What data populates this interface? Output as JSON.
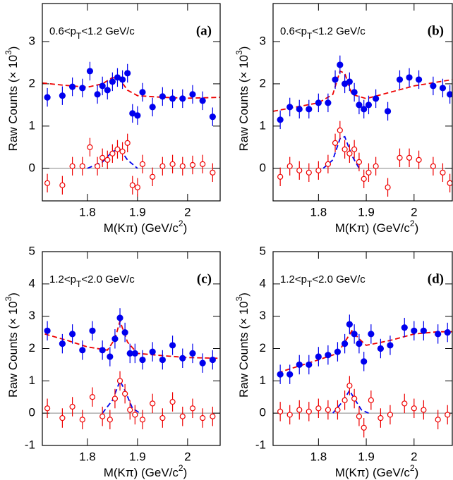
{
  "chart_data": [
    {
      "type": "scatter",
      "panel_label": "(a)",
      "annotation": [
        "0.6<p",
        "T",
        "<1.2 GeV/c"
      ],
      "ylabel": [
        "Raw Counts (",
        "×",
        " 10",
        "3",
        ")"
      ],
      "xlabel": [
        "M(K",
        "π",
        ") (GeV/c",
        "2",
        ")"
      ],
      "xlim": [
        1.71,
        2.065
      ],
      "ylim": [
        -0.77,
        3.9
      ],
      "xticks": [
        1.8,
        1.9,
        2
      ],
      "yticks": [
        0,
        1,
        2,
        3
      ],
      "zero_line": true,
      "x": [
        1.72,
        1.75,
        1.77,
        1.79,
        1.805,
        1.82,
        1.83,
        1.84,
        1.85,
        1.86,
        1.87,
        1.88,
        1.89,
        1.9,
        1.91,
        1.93,
        1.95,
        1.97,
        1.99,
        2.01,
        2.03,
        2.05
      ],
      "series": [
        {
          "color": "#0000ee",
          "marker": "filled",
          "values": [
            1.68,
            1.72,
            1.93,
            1.9,
            2.3,
            1.75,
            1.95,
            1.85,
            2.05,
            2.15,
            2.1,
            2.25,
            1.3,
            1.25,
            1.8,
            1.45,
            1.7,
            1.65,
            1.65,
            1.75,
            1.6,
            1.22
          ],
          "errors": [
            0.22,
            0.22,
            0.22,
            0.22,
            0.22,
            0.22,
            0.22,
            0.22,
            0.22,
            0.22,
            0.22,
            0.22,
            0.22,
            0.22,
            0.22,
            0.22,
            0.22,
            0.22,
            0.22,
            0.22,
            0.22,
            0.22
          ]
        },
        {
          "color": "#ee0000",
          "marker": "open",
          "values": [
            -0.35,
            -0.4,
            0.05,
            0.05,
            0.5,
            0.05,
            0.25,
            0.2,
            0.35,
            0.45,
            0.4,
            0.6,
            -0.4,
            -0.45,
            0.1,
            -0.2,
            0.05,
            0.1,
            0.05,
            0.08,
            0.1,
            -0.1
          ],
          "errors": [
            0.22,
            0.22,
            0.22,
            0.22,
            0.22,
            0.22,
            0.22,
            0.22,
            0.22,
            0.22,
            0.22,
            0.22,
            0.22,
            0.22,
            0.22,
            0.22,
            0.22,
            0.22,
            0.22,
            0.22,
            0.22,
            0.22
          ]
        }
      ],
      "fits": [
        {
          "color": "#ee0000",
          "x": [
            1.71,
            1.75,
            1.8,
            1.83,
            1.85,
            1.865,
            1.88,
            1.9,
            1.95,
            2.0,
            2.065
          ],
          "values": [
            2.02,
            1.97,
            1.92,
            2.0,
            2.15,
            2.1,
            1.85,
            1.72,
            1.68,
            1.66,
            1.68
          ]
        },
        {
          "color": "#0000ee",
          "x": [
            1.8,
            1.83,
            1.85,
            1.865,
            1.88,
            1.9
          ],
          "values": [
            0,
            0.15,
            0.4,
            0.45,
            0.2,
            0
          ]
        }
      ]
    },
    {
      "type": "scatter",
      "panel_label": "(b)",
      "annotation": [
        "0.6<p",
        "T",
        "<1.2 GeV/c"
      ],
      "ylabel": [
        "Raw Counts (",
        "×",
        " 10",
        "3",
        ")"
      ],
      "xlabel": [
        "M(K",
        "π",
        ") (GeV/c",
        "2",
        ")"
      ],
      "xlim": [
        1.705,
        2.08
      ],
      "ylim": [
        -0.77,
        3.9
      ],
      "xticks": [
        1.8,
        1.9,
        2
      ],
      "yticks": [
        0,
        1,
        2,
        3
      ],
      "zero_line": true,
      "x": [
        1.72,
        1.74,
        1.76,
        1.78,
        1.8,
        1.82,
        1.835,
        1.845,
        1.855,
        1.865,
        1.875,
        1.885,
        1.895,
        1.905,
        1.92,
        1.945,
        1.97,
        1.99,
        2.01,
        2.04,
        2.06,
        2.075
      ],
      "series": [
        {
          "color": "#0000ee",
          "marker": "filled",
          "values": [
            1.15,
            1.45,
            1.4,
            1.4,
            1.55,
            1.55,
            2.1,
            2.45,
            2.0,
            2.05,
            1.8,
            1.5,
            1.4,
            1.5,
            1.65,
            1.35,
            2.1,
            2.15,
            2.1,
            1.95,
            1.9,
            1.75
          ],
          "errors": [
            0.22,
            0.22,
            0.22,
            0.22,
            0.22,
            0.22,
            0.22,
            0.22,
            0.22,
            0.22,
            0.22,
            0.22,
            0.22,
            0.22,
            0.22,
            0.22,
            0.22,
            0.22,
            0.22,
            0.22,
            0.22,
            0.22
          ]
        },
        {
          "color": "#ee0000",
          "marker": "open",
          "values": [
            -0.2,
            0.05,
            -0.05,
            -0.1,
            -0.05,
            0.1,
            0.6,
            0.9,
            0.45,
            0.35,
            0.45,
            0.15,
            -0.25,
            -0.1,
            0.05,
            -0.45,
            0.25,
            0.25,
            0.2,
            0.05,
            -0.1,
            -0.35
          ],
          "errors": [
            0.22,
            0.22,
            0.22,
            0.22,
            0.22,
            0.22,
            0.22,
            0.22,
            0.22,
            0.22,
            0.22,
            0.22,
            0.22,
            0.22,
            0.22,
            0.22,
            0.22,
            0.22,
            0.22,
            0.22,
            0.22,
            0.22
          ]
        }
      ],
      "fits": [
        {
          "color": "#ee0000",
          "x": [
            1.705,
            1.8,
            1.83,
            1.845,
            1.855,
            1.87,
            1.9,
            2.0,
            2.08
          ],
          "values": [
            1.35,
            1.55,
            1.75,
            2.3,
            2.25,
            1.75,
            1.65,
            1.95,
            2.1
          ]
        },
        {
          "color": "#0000ee",
          "x": [
            1.81,
            1.83,
            1.845,
            1.855,
            1.87,
            1.885
          ],
          "values": [
            0,
            0.2,
            0.7,
            0.75,
            0.3,
            0
          ]
        }
      ]
    },
    {
      "type": "scatter",
      "panel_label": "(c)",
      "annotation": [
        "1.2<p",
        "T",
        "<2.0 GeV/c"
      ],
      "ylabel": [
        "Raw Counts (",
        "×",
        " 10",
        "3",
        ")"
      ],
      "xlabel": [
        "M(K",
        "π",
        ") (GeV/c",
        "2",
        ")"
      ],
      "xlim": [
        1.71,
        2.065
      ],
      "ylim": [
        -1,
        5
      ],
      "xticks": [
        1.8,
        1.9,
        2
      ],
      "yticks": [
        -1,
        0,
        1,
        2,
        3,
        4,
        5
      ],
      "zero_line": true,
      "x": [
        1.72,
        1.75,
        1.77,
        1.79,
        1.81,
        1.83,
        1.845,
        1.855,
        1.865,
        1.875,
        1.885,
        1.895,
        1.91,
        1.93,
        1.95,
        1.97,
        1.99,
        2.01,
        2.03,
        2.05
      ],
      "series": [
        {
          "color": "#0000ee",
          "marker": "filled",
          "values": [
            2.55,
            2.15,
            2.45,
            1.95,
            2.55,
            1.95,
            1.75,
            2.3,
            2.95,
            2.5,
            1.85,
            1.85,
            1.65,
            1.9,
            1.65,
            2.1,
            1.7,
            1.85,
            1.55,
            1.65
          ],
          "errors": [
            0.3,
            0.3,
            0.3,
            0.3,
            0.3,
            0.3,
            0.3,
            0.3,
            0.3,
            0.3,
            0.3,
            0.3,
            0.3,
            0.3,
            0.3,
            0.3,
            0.3,
            0.3,
            0.3,
            0.3
          ]
        },
        {
          "color": "#ee0000",
          "marker": "open",
          "values": [
            0.15,
            -0.15,
            0.2,
            -0.2,
            0.5,
            -0.1,
            -0.2,
            0.45,
            1.0,
            0.6,
            0.1,
            -0.05,
            -0.2,
            0.3,
            -0.15,
            0.35,
            -0.1,
            0.15,
            -0.15,
            -0.1
          ],
          "errors": [
            0.3,
            0.3,
            0.3,
            0.3,
            0.3,
            0.3,
            0.3,
            0.3,
            0.3,
            0.3,
            0.3,
            0.3,
            0.3,
            0.3,
            0.3,
            0.3,
            0.3,
            0.3,
            0.3,
            0.3
          ]
        }
      ],
      "fits": [
        {
          "color": "#ee0000",
          "x": [
            1.715,
            1.76,
            1.8,
            1.84,
            1.855,
            1.865,
            1.88,
            1.9,
            1.95,
            2.0,
            2.06
          ],
          "values": [
            2.45,
            2.25,
            2.05,
            1.95,
            2.3,
            2.85,
            2.2,
            1.85,
            1.78,
            1.72,
            1.7
          ]
        },
        {
          "color": "#0000ee",
          "x": [
            1.83,
            1.85,
            1.865,
            1.875,
            1.89,
            1.905
          ],
          "values": [
            0,
            0.4,
            1.0,
            0.7,
            0.15,
            0
          ]
        }
      ]
    },
    {
      "type": "scatter",
      "panel_label": "(d)",
      "annotation": [
        "1.2<p",
        "T",
        "<2.0 GeV/c"
      ],
      "ylabel": [
        "Raw Counts (",
        "×",
        " 10",
        "3",
        ")"
      ],
      "xlabel": [
        "M(K",
        "π",
        ") (GeV/c",
        "2",
        ")"
      ],
      "xlim": [
        1.705,
        2.08
      ],
      "ylim": [
        -1,
        5
      ],
      "xticks": [
        1.8,
        1.9,
        2
      ],
      "yticks": [
        -1,
        0,
        1,
        2,
        3,
        4,
        5
      ],
      "zero_line": true,
      "x": [
        1.72,
        1.74,
        1.76,
        1.78,
        1.8,
        1.82,
        1.84,
        1.855,
        1.865,
        1.875,
        1.885,
        1.895,
        1.91,
        1.93,
        1.95,
        1.98,
        2.0,
        2.02,
        2.05,
        2.07
      ],
      "series": [
        {
          "color": "#0000ee",
          "marker": "filled",
          "values": [
            1.2,
            1.2,
            1.5,
            1.5,
            1.75,
            1.8,
            1.9,
            2.15,
            2.75,
            2.45,
            2.15,
            1.6,
            2.45,
            2.0,
            2.1,
            2.65,
            2.55,
            2.55,
            2.45,
            2.5
          ],
          "errors": [
            0.3,
            0.3,
            0.3,
            0.3,
            0.3,
            0.3,
            0.3,
            0.3,
            0.3,
            0.3,
            0.3,
            0.3,
            0.3,
            0.3,
            0.3,
            0.3,
            0.3,
            0.3,
            0.3,
            0.3
          ]
        },
        {
          "color": "#ee0000",
          "marker": "open",
          "values": [
            0.05,
            -0.05,
            0.1,
            0.05,
            0.15,
            0.1,
            0.1,
            0.4,
            0.85,
            0.45,
            -0.1,
            -0.45,
            0.4,
            -0.15,
            -0.05,
            0.3,
            0.15,
            0.1,
            -0.2,
            -0.05
          ],
          "errors": [
            0.3,
            0.3,
            0.3,
            0.3,
            0.3,
            0.3,
            0.3,
            0.3,
            0.3,
            0.3,
            0.3,
            0.3,
            0.3,
            0.3,
            0.3,
            0.3,
            0.3,
            0.3,
            0.3,
            0.3
          ]
        }
      ],
      "fits": [
        {
          "color": "#ee0000",
          "x": [
            1.715,
            1.8,
            1.84,
            1.855,
            1.87,
            1.885,
            1.9,
            1.95,
            2.0,
            2.05,
            2.08
          ],
          "values": [
            1.25,
            1.65,
            1.85,
            2.2,
            2.55,
            2.3,
            2.1,
            2.25,
            2.45,
            2.52,
            2.52
          ]
        },
        {
          "color": "#0000ee",
          "x": [
            1.83,
            1.85,
            1.865,
            1.875,
            1.89,
            1.905
          ],
          "values": [
            0,
            0.35,
            0.7,
            0.45,
            0.1,
            0
          ]
        }
      ]
    }
  ]
}
